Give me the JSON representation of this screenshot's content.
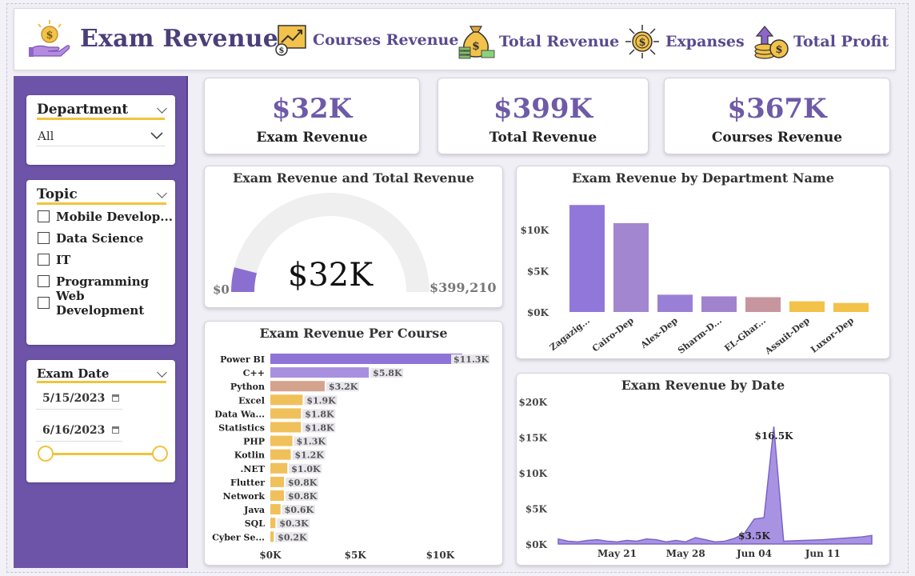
{
  "header": {
    "title": "Exam Revenue",
    "nav": [
      {
        "label": "Courses Revenue",
        "icon": "chart-money-icon"
      },
      {
        "label": "Total Revenue",
        "icon": "money-bag-icon"
      },
      {
        "label": "Expanses",
        "icon": "dollar-arrows-icon"
      },
      {
        "label": "Total Profit",
        "icon": "coins-arrow-icon"
      }
    ]
  },
  "filters": {
    "department": {
      "title": "Department",
      "value": "All"
    },
    "topic": {
      "title": "Topic",
      "options": [
        "Mobile Develop...",
        "Data Science",
        "IT",
        "Programming",
        "Web Development"
      ]
    },
    "exam_date": {
      "title": "Exam Date",
      "start": "5/15/2023",
      "end": "6/16/2023"
    }
  },
  "kpis": [
    {
      "value": "$32K",
      "label": "Exam Revenue"
    },
    {
      "value": "$399K",
      "label": "Total Revenue"
    },
    {
      "value": "$367K",
      "label": "Courses Revenue"
    }
  ],
  "gauge": {
    "title": "Exam Revenue and Total Revenue",
    "value_label": "$32K",
    "min_label": "$0",
    "max_label": "$399,210",
    "value": 32000,
    "max": 399210
  },
  "chart_data": [
    {
      "type": "bar",
      "orientation": "vertical",
      "title": "Exam Revenue by Department Name",
      "categories": [
        "Zagazig...",
        "Cairo-Dep",
        "Alex-Dep",
        "Sharm-D...",
        "EL-Ghar...",
        "Assuit-Dep",
        "Luxor-Dep"
      ],
      "values": [
        13000,
        10800,
        2100,
        1900,
        1800,
        1300,
        1100
      ],
      "colors": [
        "#9077d9",
        "#a386d0",
        "#9a7fd6",
        "#a083cc",
        "#c7959e",
        "#f2c24a",
        "#f2c24a"
      ],
      "yticks": [
        "$0K",
        "$5K",
        "$10K"
      ],
      "ytick_values": [
        0,
        5000,
        10000
      ],
      "ylim": [
        0,
        13800
      ]
    },
    {
      "type": "bar",
      "orientation": "horizontal",
      "title": "Exam Revenue Per Course",
      "categories": [
        "Power BI",
        "C++",
        "Python",
        "Excel",
        "Data Wa...",
        "Statistics",
        "PHP",
        "Kotlin",
        ".NET",
        "Flutter",
        "Network",
        "Java",
        "SQL",
        "Cyber Se..."
      ],
      "values": [
        11300,
        5800,
        3200,
        1900,
        1800,
        1800,
        1300,
        1200,
        1000,
        800,
        800,
        600,
        300,
        200
      ],
      "labels": [
        "$11.3K",
        "$5.8K",
        "$3.2K",
        "$1.9K",
        "$1.8K",
        "$1.8K",
        "$1.3K",
        "$1.2K",
        "$1.0K",
        "$0.8K",
        "$0.8K",
        "$0.6K",
        "$0.3K",
        "$0.2K"
      ],
      "colors": [
        "#8d74d6",
        "#a98fe0",
        "#d4a38e",
        "#f0c05a",
        "#f0c05a",
        "#f0c05a",
        "#f0c05a",
        "#f0c05a",
        "#f0c05a",
        "#f0c05a",
        "#f0c05a",
        "#f0c05a",
        "#f0c05a",
        "#f0c05a"
      ],
      "xticks": [
        "$0K",
        "$5K",
        "$10K"
      ],
      "xtick_values": [
        0,
        5000,
        10000
      ],
      "xlim": [
        0,
        11300
      ]
    },
    {
      "type": "area",
      "title": "Exam Revenue by Date",
      "x": [
        "May 15",
        "May 16",
        "May 17",
        "May 18",
        "May 19",
        "May 20",
        "May 21",
        "May 22",
        "May 23",
        "May 24",
        "May 25",
        "May 26",
        "May 27",
        "May 28",
        "May 29",
        "May 30",
        "May 31",
        "Jun 01",
        "Jun 02",
        "Jun 03",
        "Jun 04",
        "Jun 05",
        "Jun 06",
        "Jun 07",
        "Jun 08",
        "Jun 09",
        "Jun 10",
        "Jun 11",
        "Jun 12",
        "Jun 13",
        "Jun 14",
        "Jun 15",
        "Jun 16"
      ],
      "values": [
        700,
        400,
        300,
        500,
        600,
        400,
        300,
        500,
        400,
        700,
        600,
        300,
        500,
        300,
        900,
        600,
        300,
        400,
        800,
        1500,
        3500,
        3700,
        16500,
        400,
        450,
        500,
        550,
        600,
        700,
        800,
        900,
        1000,
        1200
      ],
      "annotations": [
        {
          "label": "$16.5K",
          "index": 22
        },
        {
          "label": "$3.5K",
          "index": 20
        }
      ],
      "xticks": [
        {
          "label": "May 21",
          "index": 6
        },
        {
          "label": "May 28",
          "index": 13
        },
        {
          "label": "Jun 04",
          "index": 20
        },
        {
          "label": "Jun 11",
          "index": 27
        }
      ],
      "yticks": [
        "$0K",
        "$5K",
        "$10K",
        "$15K",
        "$20K"
      ],
      "ytick_values": [
        0,
        5000,
        10000,
        15000,
        20000
      ],
      "ylim": [
        0,
        20000
      ]
    }
  ]
}
